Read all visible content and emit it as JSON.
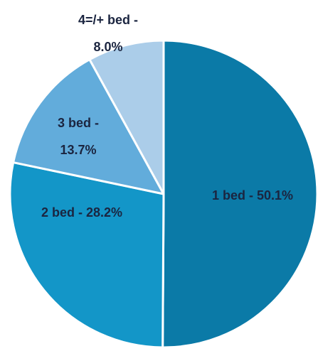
{
  "chart_data": {
    "type": "pie",
    "values": [
      50.1,
      28.2,
      13.7,
      8.0
    ],
    "value_labels": [
      [
        "1 bed - 50.1%"
      ],
      [
        "2 bed - 28.2%"
      ],
      [
        "3 bed -",
        "13.7%"
      ],
      [
        "4=/+ bed -",
        "8.0%"
      ]
    ],
    "colors": [
      "#0b7aa7",
      "#1396c8",
      "#62acdb",
      "#abcde9"
    ],
    "start_angle": 90,
    "direction": "clockwise"
  }
}
